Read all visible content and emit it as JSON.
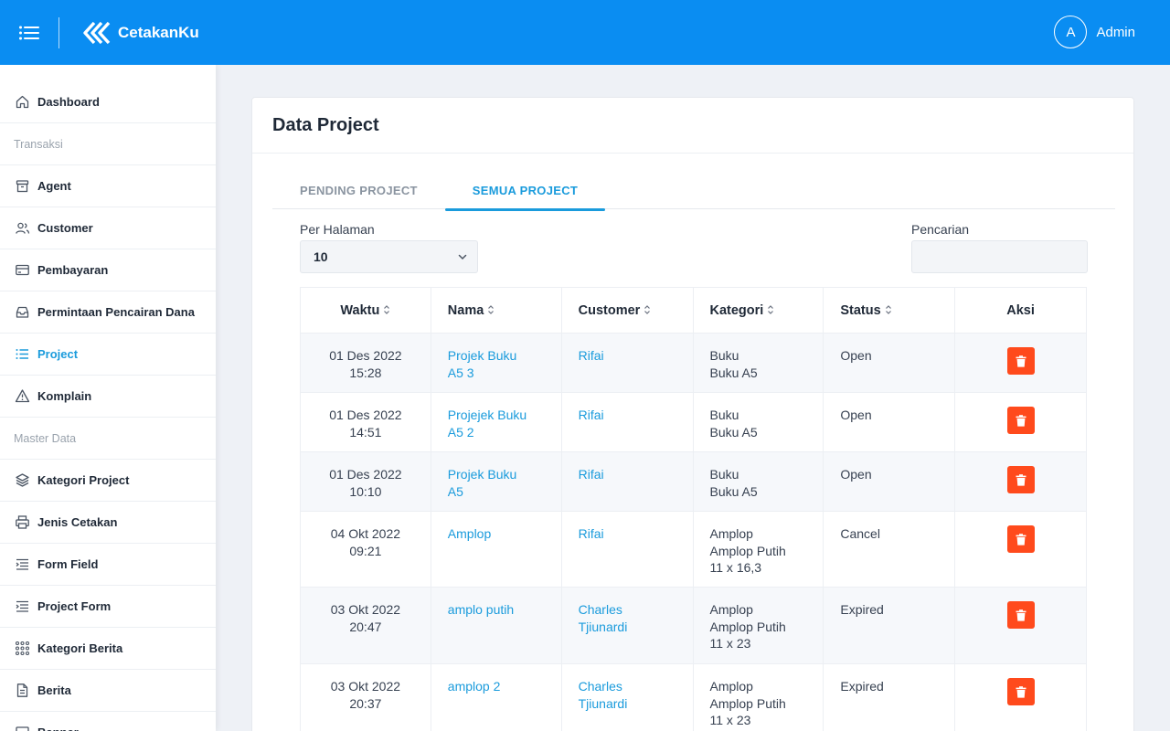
{
  "header": {
    "brand": "CetakanKu",
    "avatar_initial": "A",
    "username": "Admin",
    "color": "#0a8df2"
  },
  "sidebar": {
    "items": [
      {
        "type": "item",
        "label": "Dashboard",
        "icon": "home-icon"
      },
      {
        "type": "section",
        "label": "Transaksi"
      },
      {
        "type": "item",
        "label": "Agent",
        "icon": "archive-icon"
      },
      {
        "type": "item",
        "label": "Customer",
        "icon": "users-icon"
      },
      {
        "type": "item",
        "label": "Pembayaran",
        "icon": "credit-card-icon"
      },
      {
        "type": "item",
        "label": "Permintaan Pencairan Dana",
        "icon": "inbox-icon"
      },
      {
        "type": "item",
        "label": "Project",
        "icon": "list-icon",
        "active": true
      },
      {
        "type": "item",
        "label": "Komplain",
        "icon": "alert-triangle-icon"
      },
      {
        "type": "section",
        "label": "Master Data"
      },
      {
        "type": "item",
        "label": "Kategori Project",
        "icon": "layers-icon"
      },
      {
        "type": "item",
        "label": "Jenis Cetakan",
        "icon": "printer-icon"
      },
      {
        "type": "item",
        "label": "Form Field",
        "icon": "indent-list-icon"
      },
      {
        "type": "item",
        "label": "Project Form",
        "icon": "indent-list-icon"
      },
      {
        "type": "item",
        "label": "Kategori Berita",
        "icon": "grid-icon"
      },
      {
        "type": "item",
        "label": "Berita",
        "icon": "file-text-icon"
      },
      {
        "type": "item",
        "label": "Banner",
        "icon": "image-icon"
      }
    ]
  },
  "main": {
    "title": "Data Project",
    "tabs": [
      {
        "label": "PENDING PROJECT",
        "active": false
      },
      {
        "label": "SEMUA PROJECT",
        "active": true
      }
    ],
    "per_page_label": "Per Halaman",
    "per_page_value": "10",
    "search_label": "Pencarian",
    "search_placeholder": "",
    "columns": [
      "Waktu",
      "Nama",
      "Customer",
      "Kategori",
      "Status",
      "Aksi"
    ],
    "rows": [
      {
        "waktu": [
          "01 Des 2022",
          "15:28"
        ],
        "nama": [
          "Projek Buku",
          "A5 3"
        ],
        "customer": [
          "Rifai"
        ],
        "kategori": [
          "Buku",
          "Buku A5"
        ],
        "status": "Open"
      },
      {
        "waktu": [
          "01 Des 2022",
          "14:51"
        ],
        "nama": [
          "Projejek Buku",
          "A5 2"
        ],
        "customer": [
          "Rifai"
        ],
        "kategori": [
          "Buku",
          "Buku A5"
        ],
        "status": "Open"
      },
      {
        "waktu": [
          "01 Des 2022",
          "10:10"
        ],
        "nama": [
          "Projek Buku",
          "A5"
        ],
        "customer": [
          "Rifai"
        ],
        "kategori": [
          "Buku",
          "Buku A5"
        ],
        "status": "Open"
      },
      {
        "waktu": [
          "04 Okt 2022",
          "09:21"
        ],
        "nama": [
          "Amplop"
        ],
        "customer": [
          "Rifai"
        ],
        "kategori": [
          "Amplop",
          "Amplop Putih",
          "11 x 16,3"
        ],
        "status": "Cancel"
      },
      {
        "waktu": [
          "03 Okt 2022",
          "20:47"
        ],
        "nama": [
          "amplo putih"
        ],
        "customer": [
          "Charles",
          "Tjiunardi"
        ],
        "kategori": [
          "Amplop",
          "Amplop Putih",
          "11 x 23"
        ],
        "status": "Expired"
      },
      {
        "waktu": [
          "03 Okt 2022",
          "20:37"
        ],
        "nama": [
          "amplop 2"
        ],
        "customer": [
          "Charles",
          "Tjiunardi"
        ],
        "kategori": [
          "Amplop",
          "Amplop Putih",
          "11 x 23"
        ],
        "status": "Expired"
      }
    ],
    "delete_color": "#ff4a1c",
    "accent": "#1a9bdc"
  }
}
